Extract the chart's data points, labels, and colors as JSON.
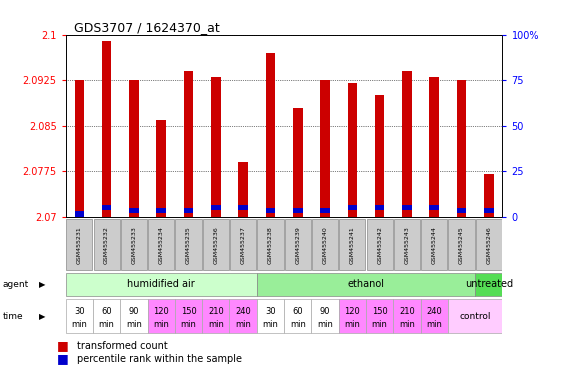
{
  "title": "GDS3707 / 1624370_at",
  "samples": [
    "GSM455231",
    "GSM455232",
    "GSM455233",
    "GSM455234",
    "GSM455235",
    "GSM455236",
    "GSM455237",
    "GSM455238",
    "GSM455239",
    "GSM455240",
    "GSM455241",
    "GSM455242",
    "GSM455243",
    "GSM455244",
    "GSM455245",
    "GSM455246"
  ],
  "red_values": [
    2.0925,
    2.099,
    2.0925,
    2.086,
    2.094,
    2.093,
    2.079,
    2.097,
    2.088,
    2.0925,
    2.092,
    2.09,
    2.094,
    2.093,
    2.0925,
    2.077
  ],
  "blue_values": [
    2.0705,
    2.0715,
    2.071,
    2.071,
    2.071,
    2.0715,
    2.0715,
    2.071,
    2.071,
    2.071,
    2.0715,
    2.0715,
    2.0715,
    2.0715,
    2.071,
    2.071
  ],
  "ymin": 2.07,
  "ymax": 2.1,
  "yticks": [
    2.07,
    2.0775,
    2.085,
    2.0925,
    2.1
  ],
  "ytick_labels": [
    "2.07",
    "2.0775",
    "2.085",
    "2.0925",
    "2.1"
  ],
  "y2ticks": [
    0,
    25,
    50,
    75,
    100
  ],
  "y2tick_labels": [
    "0",
    "25",
    "50",
    "75",
    "100%"
  ],
  "agent_groups": [
    {
      "label": "humidified air",
      "start": 0,
      "end": 7,
      "color": "#ccffcc"
    },
    {
      "label": "ethanol",
      "start": 7,
      "end": 15,
      "color": "#99ee99"
    },
    {
      "label": "untreated",
      "start": 15,
      "end": 16,
      "color": "#55dd55"
    }
  ],
  "time_labels_top": [
    "30",
    "60",
    "90",
    "120",
    "150",
    "210",
    "240",
    "30",
    "60",
    "90",
    "120",
    "150",
    "210",
    "240"
  ],
  "time_labels_bot": [
    "min",
    "min",
    "min",
    "min",
    "min",
    "min",
    "min",
    "min",
    "min",
    "min",
    "min",
    "min",
    "min",
    "min"
  ],
  "time_colors": [
    "#ffffff",
    "#ffffff",
    "#ffffff",
    "#ff88ff",
    "#ff88ff",
    "#ff88ff",
    "#ff88ff",
    "#ffffff",
    "#ffffff",
    "#ffffff",
    "#ff88ff",
    "#ff88ff",
    "#ff88ff",
    "#ff88ff"
  ],
  "control_color": "#ffccff",
  "bar_color": "#cc0000",
  "blue_color": "#0000cc",
  "legend_red": "transformed count",
  "legend_blue": "percentile rank within the sample",
  "bar_width": 0.35
}
